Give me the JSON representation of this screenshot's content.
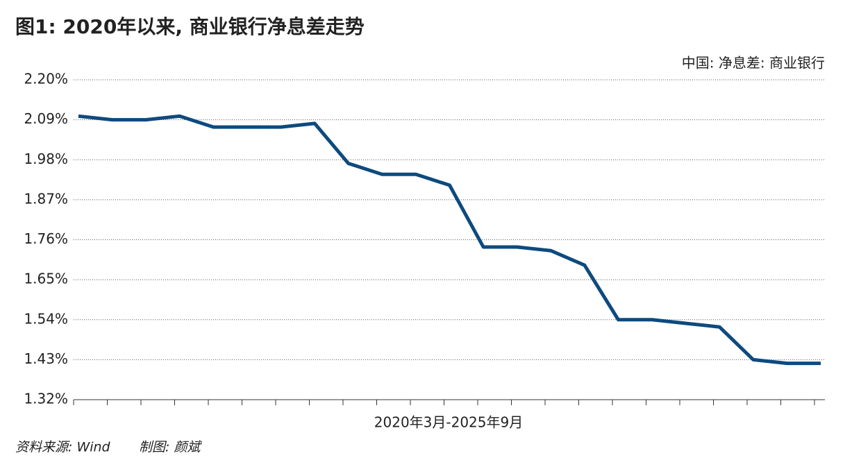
{
  "chart_data": {
    "type": "line",
    "title": "图1: 2020年以来, 商业银行净息差走势",
    "x_label": "2020年3月-2025年9月",
    "source": "资料来源: Wind",
    "credit": "制图: 颜斌",
    "categories": [
      null,
      null,
      null,
      null,
      null,
      null,
      null,
      null,
      null,
      null,
      null,
      null,
      null,
      null,
      null,
      null,
      null,
      null,
      null,
      null,
      null,
      null,
      null
    ],
    "series": [
      {
        "name": "中国: 净息差: 商业银行",
        "color": "#0d4a7e",
        "values": [
          2.1,
          2.09,
          2.09,
          2.1,
          2.07,
          2.07,
          2.07,
          2.08,
          1.97,
          1.94,
          1.94,
          1.91,
          1.74,
          1.74,
          1.73,
          1.69,
          1.54,
          1.54,
          1.53,
          1.52,
          1.43,
          1.42,
          1.42
        ]
      }
    ],
    "ylim": [
      1.32,
      2.2
    ],
    "yticks": [
      {
        "value": 1.32,
        "label": "1.32%"
      },
      {
        "value": 1.43,
        "label": "1.43%"
      },
      {
        "value": 1.54,
        "label": "1.54%"
      },
      {
        "value": 1.65,
        "label": "1.65%"
      },
      {
        "value": 1.76,
        "label": "1.76%"
      },
      {
        "value": 1.87,
        "label": "1.87%"
      },
      {
        "value": 1.98,
        "label": "1.98%"
      },
      {
        "value": 2.09,
        "label": "2.09%"
      },
      {
        "value": 2.2,
        "label": "2.20%"
      }
    ],
    "grid": true
  }
}
